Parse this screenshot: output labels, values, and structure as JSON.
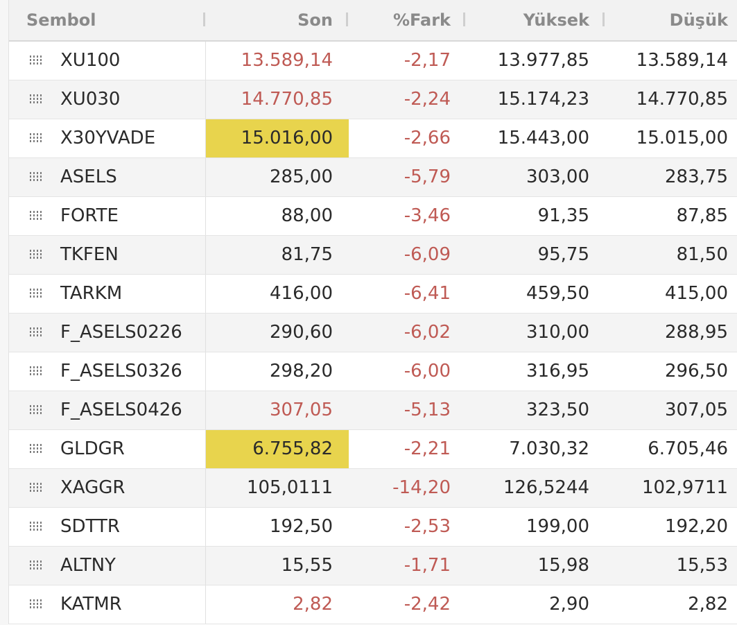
{
  "header": {
    "symbol": "Sembol",
    "last": "Son",
    "change": "%Fark",
    "high": "Yüksek",
    "low": "Düşük"
  },
  "rows": [
    {
      "symbol": "XU100",
      "last": "13.589,14",
      "change": "-2,17",
      "high": "13.977,85",
      "low": "13.589,14"
    },
    {
      "symbol": "XU030",
      "last": "14.770,85",
      "change": "-2,24",
      "high": "15.174,23",
      "low": "14.770,85"
    },
    {
      "symbol": "X30YVADE",
      "last": "15.016,00",
      "change": "-2,66",
      "high": "15.443,00",
      "low": "15.015,00"
    },
    {
      "symbol": "ASELS",
      "last": "285,00",
      "change": "-5,79",
      "high": "303,00",
      "low": "283,75"
    },
    {
      "symbol": "FORTE",
      "last": "88,00",
      "change": "-3,46",
      "high": "91,35",
      "low": "87,85"
    },
    {
      "symbol": "TKFEN",
      "last": "81,75",
      "change": "-6,09",
      "high": "95,75",
      "low": "81,50"
    },
    {
      "symbol": "TARKM",
      "last": "416,00",
      "change": "-6,41",
      "high": "459,50",
      "low": "415,00"
    },
    {
      "symbol": "F_ASELS0226",
      "last": "290,60",
      "change": "-6,02",
      "high": "310,00",
      "low": "288,95"
    },
    {
      "symbol": "F_ASELS0326",
      "last": "298,20",
      "change": "-6,00",
      "high": "316,95",
      "low": "296,50"
    },
    {
      "symbol": "F_ASELS0426",
      "last": "307,05",
      "change": "-5,13",
      "high": "323,50",
      "low": "307,05"
    },
    {
      "symbol": "GLDGR",
      "last": "6.755,82",
      "change": "-2,21",
      "high": "7.030,32",
      "low": "6.705,46"
    },
    {
      "symbol": "XAGGR",
      "last": "105,0111",
      "change": "-14,20",
      "high": "126,5244",
      "low": "102,9711"
    },
    {
      "symbol": "SDTTR",
      "last": "192,50",
      "change": "-2,53",
      "high": "199,00",
      "low": "192,20"
    },
    {
      "symbol": "ALTNY",
      "last": "15,55",
      "change": "-1,71",
      "high": "15,98",
      "low": "15,53"
    },
    {
      "symbol": "KATMR",
      "last": "2,82",
      "change": "-2,42",
      "high": "2,90",
      "low": "2,82"
    }
  ],
  "colors": {
    "negative": "#bf5a54",
    "highlight": "#e8d44d",
    "header_text": "#8a8a8a",
    "alt_row": "#f4f4f4"
  },
  "icons": {
    "row_handle": "drag-handle-icon"
  }
}
